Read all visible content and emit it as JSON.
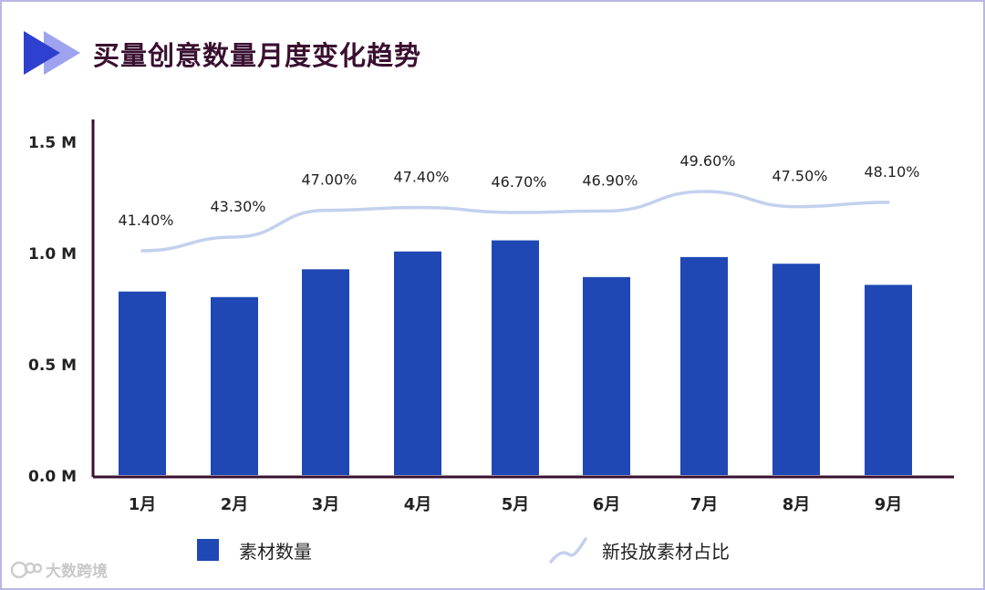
{
  "header": {
    "title": "买量创意数量月度变化趋势",
    "icon": "double-chevron-right-icon"
  },
  "watermark": {
    "text": "大数跨境",
    "icon": "logo-icon"
  },
  "colors": {
    "bar": "#1f48b5",
    "line": "#c3d1ee",
    "axis": "#3a1030",
    "title": "#3a1030",
    "frame": "#b8b6e4",
    "chevron_dark": "#2f3fcf",
    "chevron_light": "#9fa3ef"
  },
  "chart_data": {
    "type": "bar",
    "title": "买量创意数量月度变化趋势",
    "categories": [
      "1月",
      "2月",
      "3月",
      "4月",
      "5月",
      "6月",
      "7月",
      "8月",
      "9月"
    ],
    "ylim": [
      0,
      1500000
    ],
    "y_ticks": [
      {
        "value": 0,
        "label": "0.0 M"
      },
      {
        "value": 500000,
        "label": "0.5 M"
      },
      {
        "value": 1000000,
        "label": "1.0 M"
      },
      {
        "value": 1500000,
        "label": "1.5 M"
      }
    ],
    "grid": false,
    "legend_position": "bottom",
    "series": [
      {
        "name": "素材数量",
        "type": "bar",
        "values": [
          825000,
          800000,
          925000,
          1005000,
          1055000,
          890000,
          980000,
          950000,
          855000
        ]
      },
      {
        "name": "新投放素材占比",
        "type": "line",
        "unit": "%",
        "values": [
          41.4,
          43.3,
          47.0,
          47.4,
          46.7,
          46.9,
          49.6,
          47.5,
          48.1
        ],
        "labels": [
          "41.40%",
          "43.30%",
          "47.00%",
          "47.40%",
          "46.70%",
          "46.90%",
          "49.60%",
          "47.50%",
          "48.10%"
        ]
      }
    ]
  }
}
